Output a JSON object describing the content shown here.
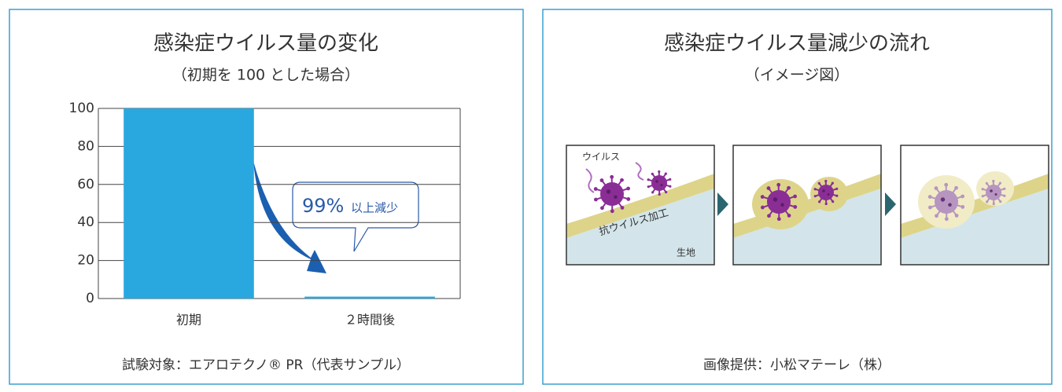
{
  "chart_data": {
    "type": "bar",
    "title": "感染症ウイルス量の変化",
    "subtitle": "（初期を 100 とした場合）",
    "categories": [
      "初期",
      "２時間後"
    ],
    "values": [
      100,
      1
    ],
    "color": "#29a8e0",
    "ylim": [
      0,
      100
    ],
    "yticks": [
      0,
      20,
      40,
      60,
      80,
      100
    ],
    "grid": true,
    "annotation": {
      "value_text": "99%",
      "text": "以上減少"
    },
    "note": "試験対象：エアロテクノ® PR（代表サンプル）"
  },
  "diagram": {
    "title": "感染症ウイルス量減少の流れ",
    "subtitle": "（イメージ図）",
    "labels": {
      "virus": "ウイルス",
      "coating": "抗ウイルス加工",
      "fabric": "生地"
    },
    "caption": "画像提供：小松マテーレ（株）"
  }
}
